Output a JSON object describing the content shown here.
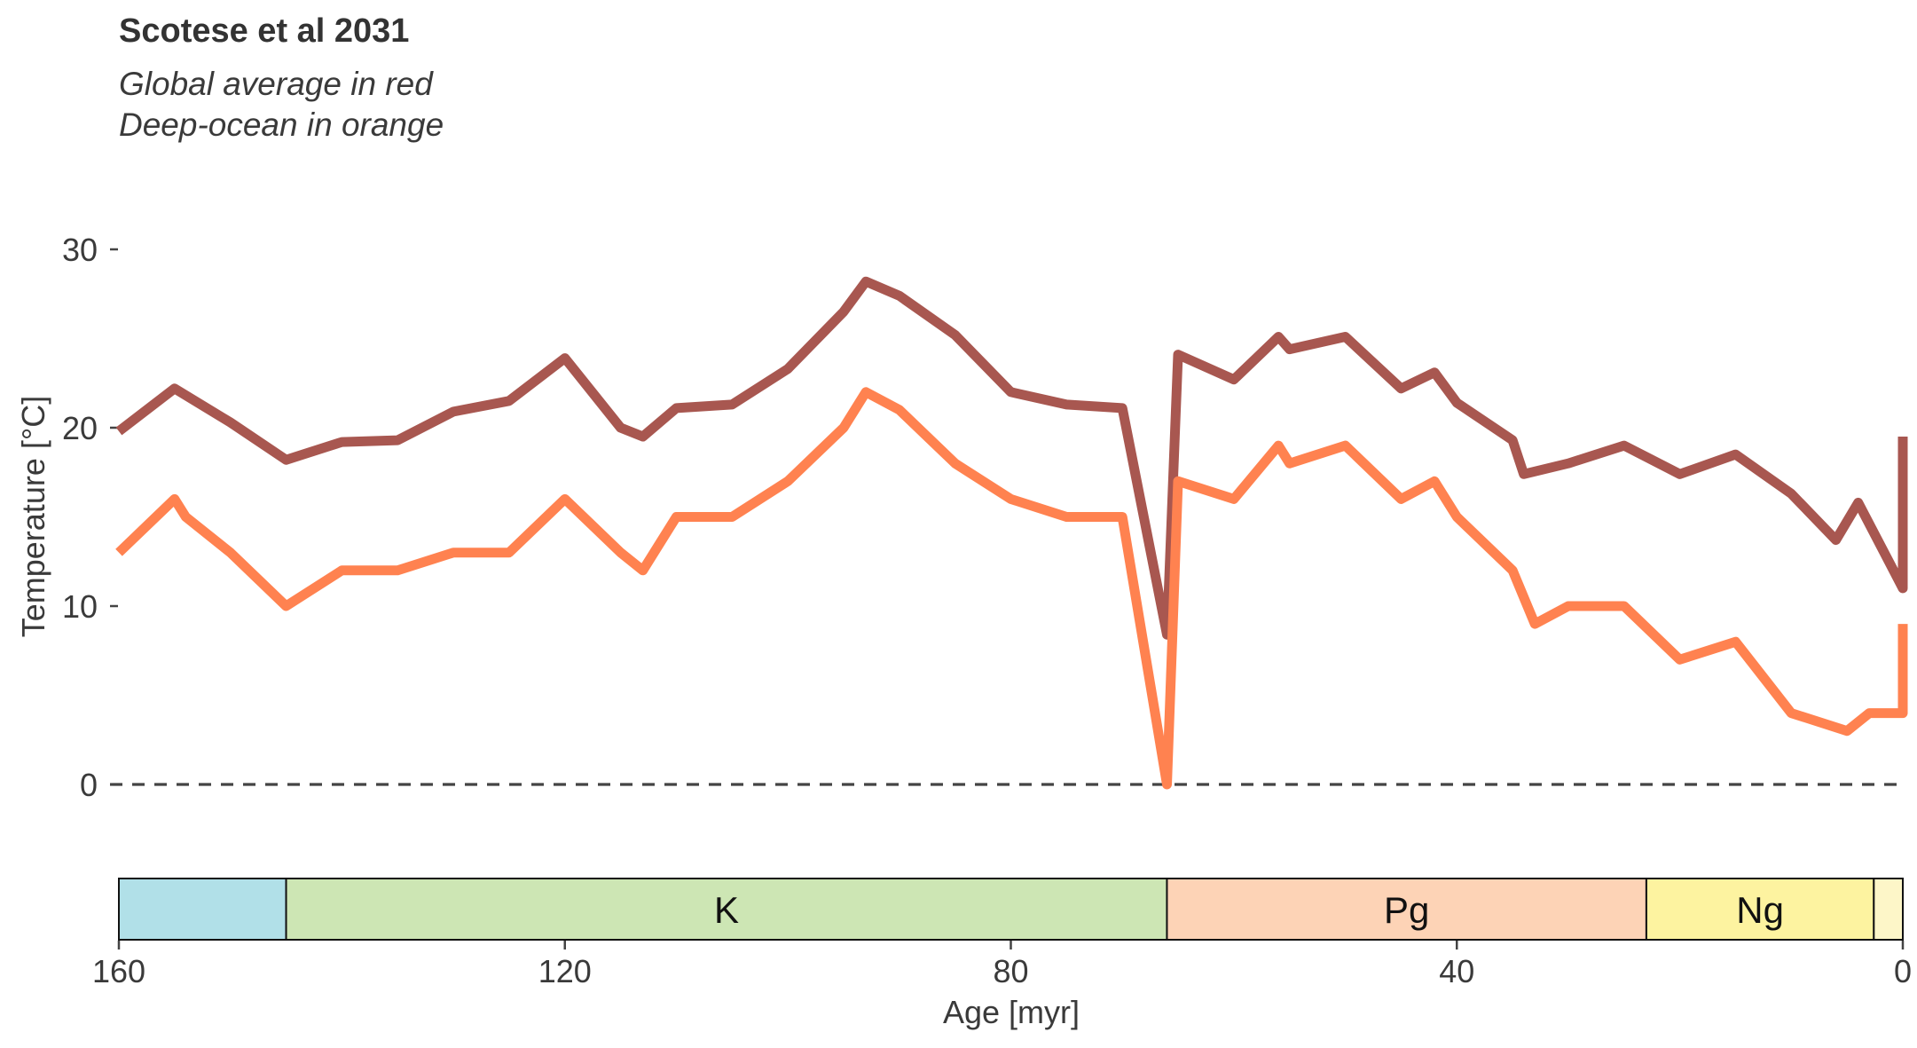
{
  "chart_data": {
    "type": "line",
    "title": "Scotese et al 2031",
    "subtitle_lines": [
      "Global average in red",
      "Deep-ocean in orange"
    ],
    "xlabel": "Age [myr]",
    "ylabel": "Temperature [°C]",
    "xlim": [
      160,
      0
    ],
    "ylim": [
      -3,
      32
    ],
    "x_ticks": [
      160,
      120,
      80,
      40,
      0
    ],
    "y_ticks": [
      0,
      10,
      20,
      30
    ],
    "reference_line": {
      "y": 0,
      "style": "dashed",
      "color": "#444444"
    },
    "grid": false,
    "series": [
      {
        "key": "global",
        "color": "#a85750",
        "x": [
          160,
          155,
          150,
          145,
          140,
          135,
          130,
          125,
          120,
          115,
          113,
          110,
          105,
          100,
          95,
          93,
          90,
          85,
          80,
          75,
          70,
          66,
          65,
          60,
          56,
          55,
          50,
          45,
          42,
          40,
          35,
          34,
          30,
          25,
          20,
          15,
          10,
          6,
          4,
          0,
          0
        ],
        "y": [
          19.8,
          22.2,
          20.3,
          18.2,
          19.2,
          19.3,
          20.9,
          21.5,
          23.9,
          20.0,
          19.5,
          21.1,
          21.3,
          23.3,
          26.5,
          28.2,
          27.4,
          25.2,
          22.0,
          21.3,
          21.1,
          8.4,
          24.1,
          22.7,
          25.1,
          24.4,
          25.1,
          22.2,
          23.1,
          21.4,
          19.3,
          17.4,
          18.0,
          19.0,
          17.4,
          18.5,
          16.3,
          13.7,
          15.8,
          11.0,
          19.5
        ]
      },
      {
        "key": "deep_ocean",
        "color": "#ff8250",
        "x": [
          160,
          155,
          154,
          150,
          145,
          140,
          135,
          130,
          125,
          120,
          115,
          113,
          110,
          105,
          100,
          95,
          93,
          90,
          85,
          80,
          75,
          70,
          66,
          65,
          60,
          56,
          55,
          50,
          45,
          42,
          40,
          35,
          33,
          30,
          25,
          20,
          15,
          10,
          5,
          3,
          0,
          0
        ],
        "y": [
          13.0,
          16.0,
          15.0,
          13.0,
          10.0,
          12.0,
          12.0,
          13.0,
          13.0,
          16.0,
          13.0,
          12.0,
          15.0,
          15.0,
          17.0,
          20.0,
          22.0,
          21.0,
          18.0,
          16.0,
          15.0,
          15.0,
          0.0,
          17.0,
          16.0,
          19.0,
          18.0,
          19.0,
          16.0,
          17.0,
          15.0,
          12.0,
          9.0,
          10.0,
          10.0,
          7.0,
          8.0,
          4.0,
          3.0,
          4.0,
          4.0,
          9.0
        ]
      }
    ],
    "periods": [
      {
        "label": "",
        "start": 160,
        "end": 145,
        "color": "#b1e0e8"
      },
      {
        "label": "K",
        "start": 145,
        "end": 66,
        "color": "#cde6b4"
      },
      {
        "label": "Pg",
        "start": 66,
        "end": 23,
        "color": "#fdd3b6"
      },
      {
        "label": "Ng",
        "start": 23,
        "end": 2.6,
        "color": "#fdf3a0"
      },
      {
        "label": "",
        "start": 2.6,
        "end": 0,
        "color": "#fdf6c8"
      }
    ]
  }
}
